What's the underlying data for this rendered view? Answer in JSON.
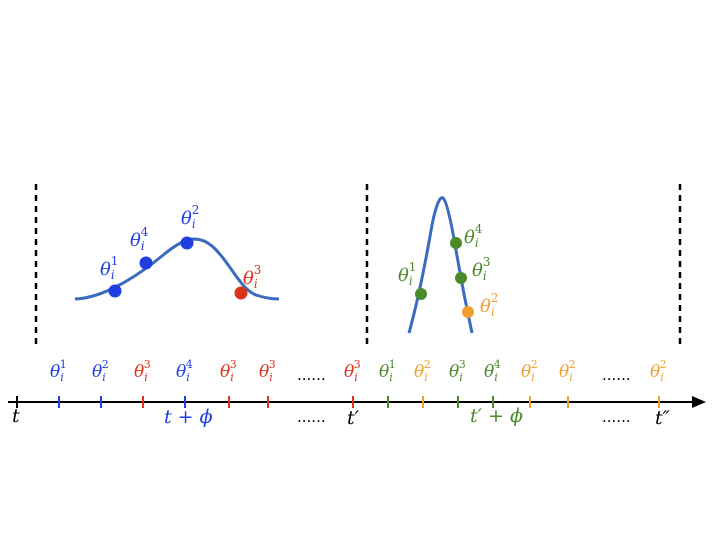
{
  "colors": {
    "blue": "#1f3fe0",
    "red": "#d9341c",
    "green": "#4a8a2a",
    "orange": "#f0a030",
    "curve": "#3a6bbf",
    "black": "#000000"
  },
  "curve1_points": [
    {
      "sub": "i",
      "sup": "1",
      "color": "blue"
    },
    {
      "sub": "i",
      "sup": "4",
      "color": "blue"
    },
    {
      "sub": "i",
      "sup": "2",
      "color": "blue"
    },
    {
      "sub": "i",
      "sup": "3",
      "color": "red"
    }
  ],
  "curve2_points": [
    {
      "sub": "i",
      "sup": "4",
      "color": "green"
    },
    {
      "sub": "i",
      "sup": "1",
      "color": "green"
    },
    {
      "sub": "i",
      "sup": "3",
      "color": "green"
    },
    {
      "sub": "i",
      "sup": "2",
      "color": "orange"
    }
  ],
  "top_labels": [
    {
      "sup": "1",
      "color": "blue"
    },
    {
      "sup": "2",
      "color": "blue"
    },
    {
      "sup": "3",
      "color": "red"
    },
    {
      "sup": "4",
      "color": "blue"
    },
    {
      "sup": "3",
      "color": "red"
    },
    {
      "sup": "3",
      "color": "red"
    },
    {
      "sup": "3",
      "color": "red"
    },
    {
      "sup": "1",
      "color": "green"
    },
    {
      "sup": "2",
      "color": "orange"
    },
    {
      "sup": "3",
      "color": "green"
    },
    {
      "sup": "4",
      "color": "green"
    },
    {
      "sup": "2",
      "color": "orange"
    },
    {
      "sup": "2",
      "color": "orange"
    },
    {
      "sup": "2",
      "color": "orange"
    }
  ],
  "theta_symbol": "θ",
  "theta_sub": "i",
  "ellipsis": "......",
  "axis_labels": {
    "t": "t",
    "t_phi": "t + ϕ",
    "t_prime": "t′",
    "t_prime_phi": "t′ + ϕ",
    "t_dprime": "t″"
  }
}
